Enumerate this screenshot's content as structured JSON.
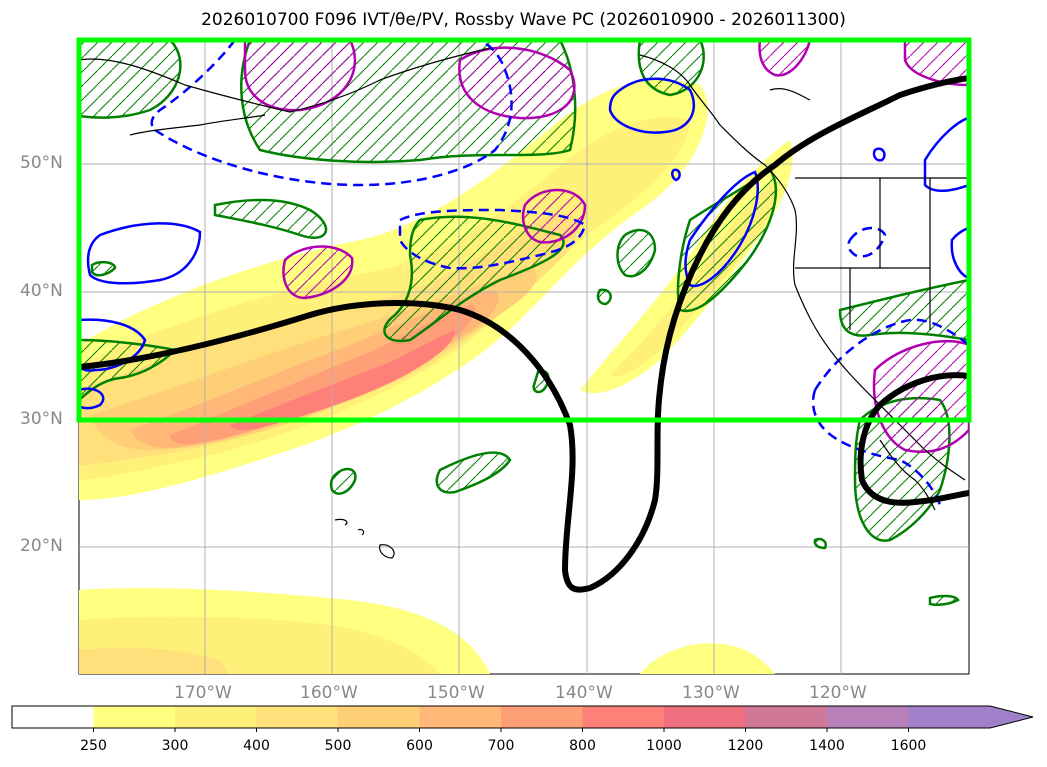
{
  "title": "2026010700 F096 IVT/θe/PV, Rossby Wave PC (2026010900 - 2026011300)",
  "lat_labels": [
    "50°N",
    "40°N",
    "30°N",
    "20°N"
  ],
  "lon_labels": [
    "170°W",
    "160°W",
    "150°W",
    "140°W",
    "130°W",
    "120°W"
  ],
  "colorbar": {
    "labels": [
      "250",
      "300",
      "400",
      "500",
      "600",
      "700",
      "800",
      "1000",
      "1200",
      "1400",
      "1600"
    ],
    "colors": [
      "#ffffff",
      "#ffff80",
      "#fff07a",
      "#ffe07a",
      "#ffcf78",
      "#ffb878",
      "#ff9f78",
      "#ff8078",
      "#f07080",
      "#d07898",
      "#b880b8",
      "#a080c8"
    ]
  },
  "colors": {
    "box": "#00ff00",
    "green_contour": "#008000",
    "blue_contour": "#0000ff",
    "magenta_contour": "#b000b0",
    "black_contour": "#000000",
    "grid": "#b0b0b0",
    "tick_label": "#888888"
  }
}
